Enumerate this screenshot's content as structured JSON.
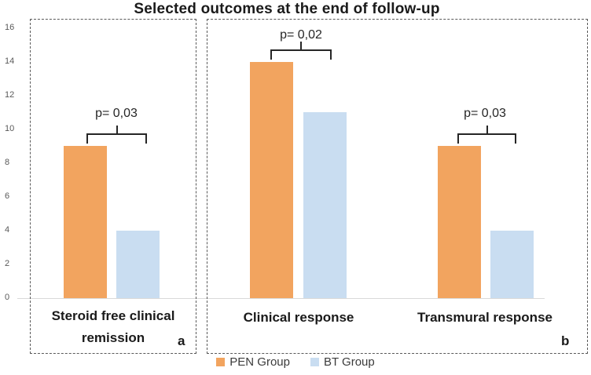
{
  "title": "Selected outcomes at the end of follow-up",
  "legend": [
    {
      "label": "PEN Group",
      "color": "#F2A45F"
    },
    {
      "label": "BT Group",
      "color": "#C9DDF1"
    }
  ],
  "category_labels": {
    "c1_line1": "Steroid free clinical",
    "c1_line2": "remission",
    "c2": "Clinical response",
    "c3": "Transmural response"
  },
  "panel_labels": {
    "a": "a",
    "b": "b"
  },
  "colors": {
    "pen_orange": "#F2A45F",
    "bt_blue": "#C9DDF1",
    "axis_line": "#D9D9D9",
    "text_dark": "#262626",
    "tick_gray": "#595959"
  },
  "chart_data": {
    "type": "bar",
    "title": "Selected outcomes at the end of follow-up",
    "categories": [
      "Steroid free clinical remission",
      "Clinical response",
      "Transmural response"
    ],
    "series": [
      {
        "name": "PEN Group",
        "values": [
          9,
          14,
          9
        ],
        "color": "#F2A45F"
      },
      {
        "name": "BT Group",
        "values": [
          4,
          11,
          4
        ],
        "color": "#C9DDF1"
      }
    ],
    "annotations": [
      {
        "category": "Steroid free clinical remission",
        "text": "p= 0,03"
      },
      {
        "category": "Clinical response",
        "text": "p= 0,02"
      },
      {
        "category": "Transmural response",
        "text": "p= 0,03"
      }
    ],
    "ylim": [
      0,
      16
    ],
    "y_ticks": [
      0,
      2,
      4,
      6,
      8,
      10,
      12,
      14,
      16
    ],
    "grid": false,
    "legend_position": "bottom",
    "panel_labels": [
      "a",
      "b"
    ]
  }
}
